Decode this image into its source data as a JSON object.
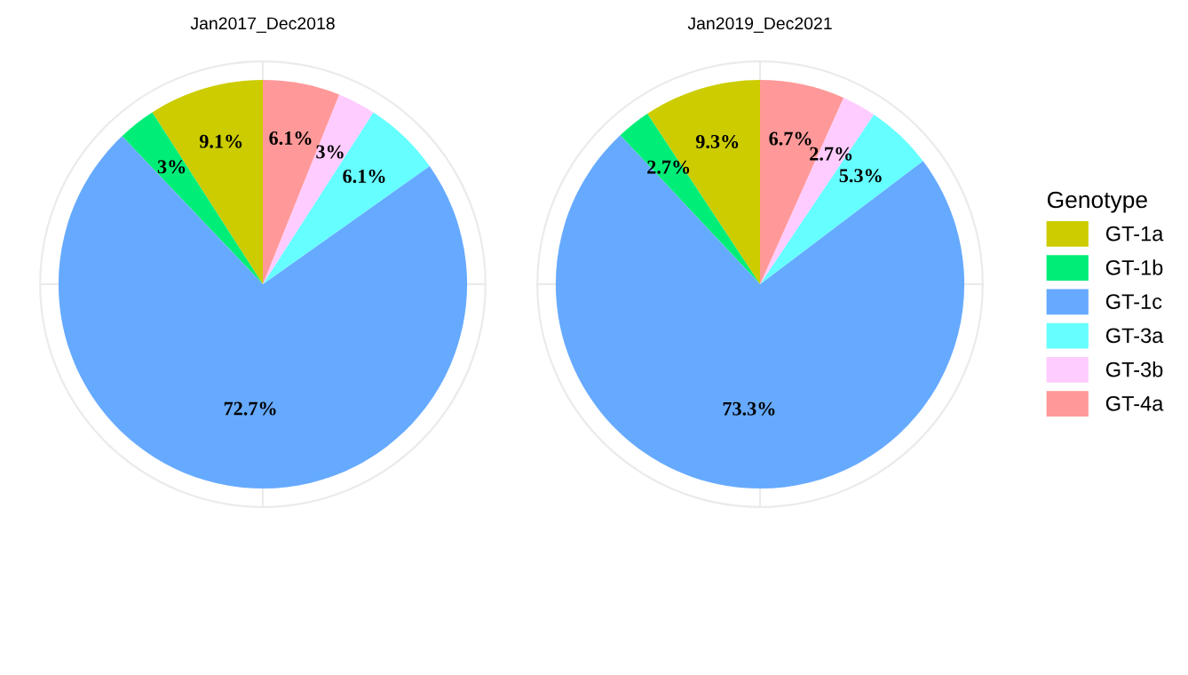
{
  "chart_data": [
    {
      "type": "pie",
      "title": "Jan2017_Dec2018",
      "categories": [
        "GT-1a",
        "GT-1b",
        "GT-1c",
        "GT-3a",
        "GT-3b",
        "GT-4a"
      ],
      "values": [
        9.1,
        3,
        72.7,
        6.1,
        3,
        6.1
      ],
      "value_labels": [
        "9.1%",
        "3%",
        "72.7%",
        "6.1%",
        "3%",
        "6.1%"
      ],
      "colors": [
        "#cccc00",
        "#00ee77",
        "#66aaff",
        "#66ffff",
        "#ffccff",
        "#ff9999"
      ],
      "grid": true,
      "legend": "right",
      "legend_title": "Genotype"
    },
    {
      "type": "pie",
      "title": "Jan2019_Dec2021",
      "categories": [
        null,
        null,
        null,
        null,
        null,
        null
      ],
      "values": [
        9.3,
        2.7,
        73.3,
        5.3,
        2.7,
        6.7
      ],
      "value_labels": [
        "9.3%",
        "2.7%",
        "73.3%",
        "5.3%",
        "2.7%",
        "6.7%"
      ],
      "colors": [
        "#cccc00",
        "#00ee77",
        "#66aaff",
        "#66ffff",
        "#ffccff",
        "#ff9999"
      ],
      "grid": true
    }
  ]
}
